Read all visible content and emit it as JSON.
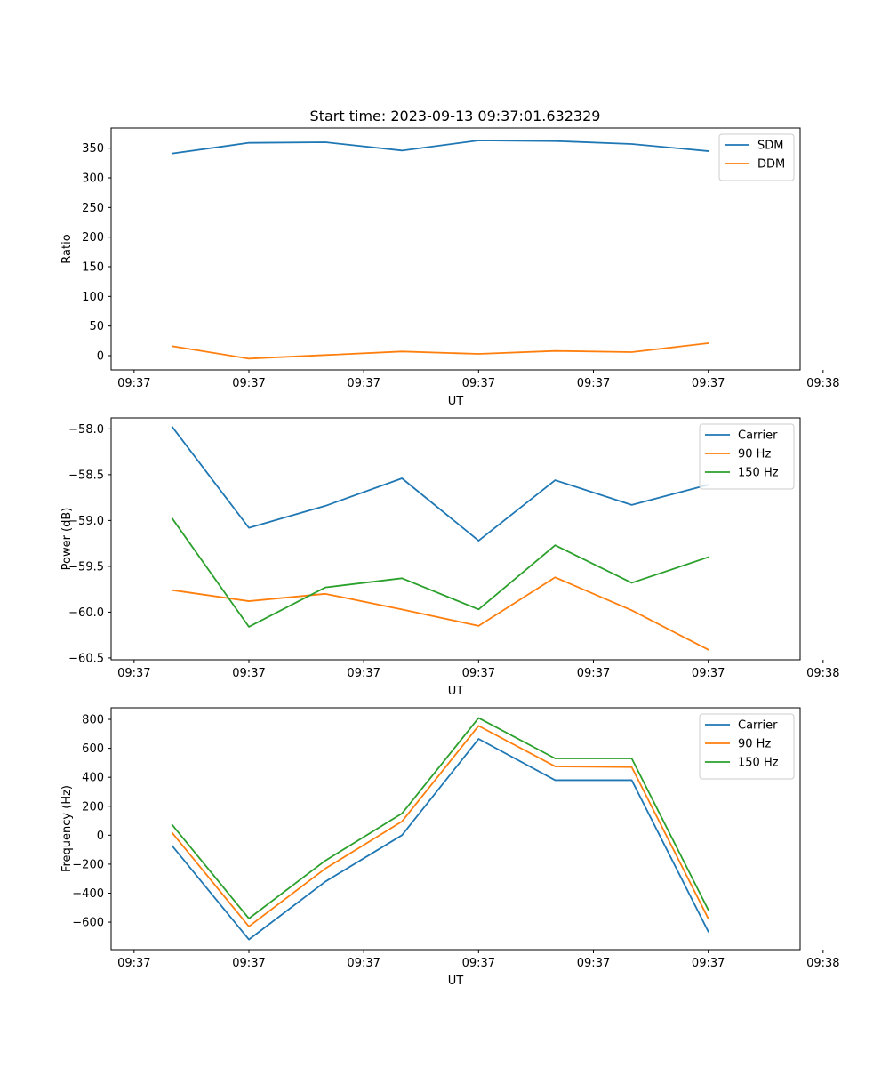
{
  "figure_title": "Start time: 2023-09-13 09:37:01.632329",
  "colors": {
    "blue": "#1f77b4",
    "orange": "#ff7f0e",
    "green": "#2ca02c"
  },
  "chart_data": [
    {
      "type": "line",
      "title": "Start time: 2023-09-13 09:37:01.632329",
      "xlabel": "UT",
      "ylabel": "Ratio",
      "x": [
        1,
        2,
        3,
        4,
        5,
        6,
        7,
        8
      ],
      "xlim": [
        0.2,
        9.2
      ],
      "xticks": [
        0.5,
        2,
        3.5,
        5,
        6.5,
        8,
        9.5
      ],
      "xtick_labels": [
        "09:37",
        "09:37",
        "09:37",
        "09:37",
        "09:37",
        "09:37",
        "09:38"
      ],
      "ylim": [
        -24,
        384
      ],
      "yticks": [
        0,
        50,
        100,
        150,
        200,
        250,
        300,
        350
      ],
      "ytick_labels": [
        "0",
        "50",
        "100",
        "150",
        "200",
        "250",
        "300",
        "350"
      ],
      "legend": "top-right",
      "series": [
        {
          "name": "SDM",
          "color": "#1f77b4",
          "values": [
            341,
            359,
            360,
            346,
            363,
            362,
            357,
            345
          ]
        },
        {
          "name": "DDM",
          "color": "#ff7f0e",
          "values": [
            16,
            -5,
            1,
            7,
            3,
            8,
            6,
            21
          ]
        }
      ]
    },
    {
      "type": "line",
      "title": "",
      "xlabel": "UT",
      "ylabel": "Power (dB)",
      "x": [
        1,
        2,
        3,
        4,
        5,
        6,
        7,
        8
      ],
      "xlim": [
        0.2,
        9.2
      ],
      "xticks": [
        0.5,
        2,
        3.5,
        5,
        6.5,
        8,
        9.5
      ],
      "xtick_labels": [
        "09:37",
        "09:37",
        "09:37",
        "09:37",
        "09:37",
        "09:37",
        "09:38"
      ],
      "ylim": [
        -60.52,
        -57.88
      ],
      "yticks": [
        -60.5,
        -60.0,
        -59.5,
        -59.0,
        -58.5,
        -58.0
      ],
      "ytick_labels": [
        "−60.5",
        "−60.0",
        "−59.5",
        "−59.0",
        "−58.5",
        "−58.0"
      ],
      "legend": "top-right",
      "series": [
        {
          "name": "Carrier",
          "color": "#1f77b4",
          "values": [
            -57.98,
            -59.08,
            -58.84,
            -58.54,
            -59.22,
            -58.56,
            -58.83,
            -58.61
          ]
        },
        {
          "name": "90 Hz",
          "color": "#ff7f0e",
          "values": [
            -59.76,
            -59.88,
            -59.8,
            -59.97,
            -60.15,
            -59.62,
            -59.98,
            -60.41
          ]
        },
        {
          "name": "150 Hz",
          "color": "#2ca02c",
          "values": [
            -58.98,
            -60.16,
            -59.73,
            -59.63,
            -59.97,
            -59.27,
            -59.68,
            -59.4
          ]
        }
      ]
    },
    {
      "type": "line",
      "title": "",
      "xlabel": "UT",
      "ylabel": "Frequency (Hz)",
      "x": [
        1,
        2,
        3,
        4,
        5,
        6,
        7,
        8
      ],
      "xlim": [
        0.2,
        9.2
      ],
      "xticks": [
        0.5,
        2,
        3.5,
        5,
        6.5,
        8,
        9.5
      ],
      "xtick_labels": [
        "09:37",
        "09:37",
        "09:37",
        "09:37",
        "09:37",
        "09:37",
        "09:38"
      ],
      "ylim": [
        -790,
        880
      ],
      "yticks": [
        -600,
        -400,
        -200,
        0,
        200,
        400,
        600,
        800
      ],
      "ytick_labels": [
        "−600",
        "−400",
        "−200",
        "0",
        "200",
        "400",
        "600",
        "800"
      ],
      "legend": "top-right",
      "series": [
        {
          "name": "Carrier",
          "color": "#1f77b4",
          "values": [
            -75,
            -720,
            -320,
            0,
            665,
            380,
            380,
            -665
          ]
        },
        {
          "name": "90 Hz",
          "color": "#ff7f0e",
          "values": [
            15,
            -630,
            -230,
            95,
            755,
            475,
            470,
            -575
          ]
        },
        {
          "name": "150 Hz",
          "color": "#2ca02c",
          "values": [
            70,
            -575,
            -175,
            150,
            810,
            530,
            530,
            -515
          ]
        }
      ]
    }
  ]
}
